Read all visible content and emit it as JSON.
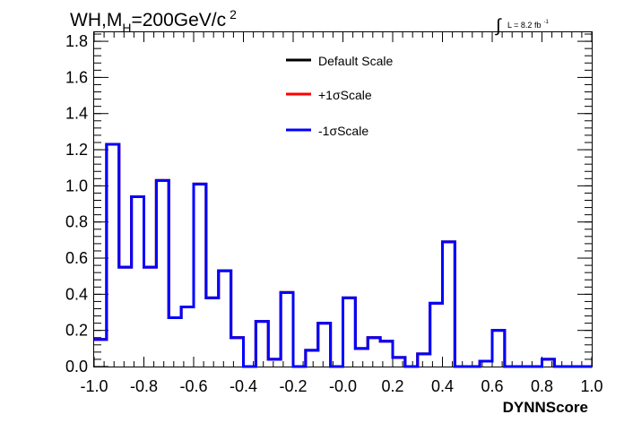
{
  "chart_data": {
    "type": "histogram",
    "title_prefix": "WH,M",
    "title_sub": "H",
    "title_mid": "=200GeV/c",
    "title_sup": "2",
    "lumi_label": "L = 8.2 fb",
    "lumi_sup": "-1",
    "xlabel": "DYNNScore",
    "ylabel": "",
    "xlim": [
      -1.0,
      1.0
    ],
    "ylim": [
      0.0,
      1.85
    ],
    "x_ticks": [
      "-1.0",
      "-0.8",
      "-0.6",
      "-0.4",
      "-0.2",
      "-0.0",
      "0.2",
      "0.4",
      "0.6",
      "0.8",
      "1.0"
    ],
    "y_ticks": [
      "0.0",
      "0.2",
      "0.4",
      "0.6",
      "0.8",
      "1.0",
      "1.2",
      "1.4",
      "1.6",
      "1.8"
    ],
    "grid": false,
    "legend_position": "top-center",
    "bin_edges": [
      -1.0,
      -0.95,
      -0.9,
      -0.85,
      -0.8,
      -0.75,
      -0.7,
      -0.65,
      -0.6,
      -0.55,
      -0.5,
      -0.45,
      -0.4,
      -0.35,
      -0.3,
      -0.25,
      -0.2,
      -0.15,
      -0.1,
      -0.05,
      0.0,
      0.05,
      0.1,
      0.15,
      0.2,
      0.25,
      0.3,
      0.35,
      0.4,
      0.45,
      0.5,
      0.55,
      0.6,
      0.65,
      0.7,
      0.75,
      0.8,
      0.85,
      0.9,
      0.95,
      1.0
    ],
    "series": [
      {
        "name": "Default Scale",
        "color": "#000000",
        "values": [
          0.15,
          1.23,
          0.55,
          0.94,
          0.55,
          1.03,
          0.27,
          0.33,
          1.01,
          0.38,
          0.53,
          0.16,
          0.0,
          0.25,
          0.04,
          0.41,
          0.0,
          0.09,
          0.24,
          0.0,
          0.38,
          0.1,
          0.16,
          0.14,
          0.05,
          0.0,
          0.07,
          0.35,
          0.69,
          0.0,
          0.0,
          0.03,
          0.2,
          0.0,
          0.0,
          0.0,
          0.04,
          0.0,
          0.0,
          0.0
        ]
      },
      {
        "name": "+1σScale",
        "color": "#ff0000",
        "values": [
          0.15,
          1.23,
          0.55,
          0.94,
          0.55,
          1.03,
          0.27,
          0.33,
          1.01,
          0.38,
          0.53,
          0.16,
          0.0,
          0.25,
          0.04,
          0.41,
          0.0,
          0.09,
          0.24,
          0.0,
          0.38,
          0.1,
          0.16,
          0.14,
          0.05,
          0.0,
          0.07,
          0.35,
          0.69,
          0.0,
          0.0,
          0.03,
          0.2,
          0.0,
          0.0,
          0.0,
          0.04,
          0.0,
          0.0,
          0.0
        ]
      },
      {
        "name": "-1σScale",
        "color": "#0000ff",
        "values": [
          0.15,
          1.23,
          0.55,
          0.94,
          0.55,
          1.03,
          0.27,
          0.33,
          1.01,
          0.38,
          0.53,
          0.16,
          0.0,
          0.25,
          0.04,
          0.41,
          0.0,
          0.09,
          0.24,
          0.0,
          0.38,
          0.1,
          0.16,
          0.14,
          0.05,
          0.0,
          0.07,
          0.35,
          0.69,
          0.0,
          0.0,
          0.03,
          0.2,
          0.0,
          0.0,
          0.0,
          0.04,
          0.0,
          0.0,
          0.0
        ]
      }
    ]
  }
}
